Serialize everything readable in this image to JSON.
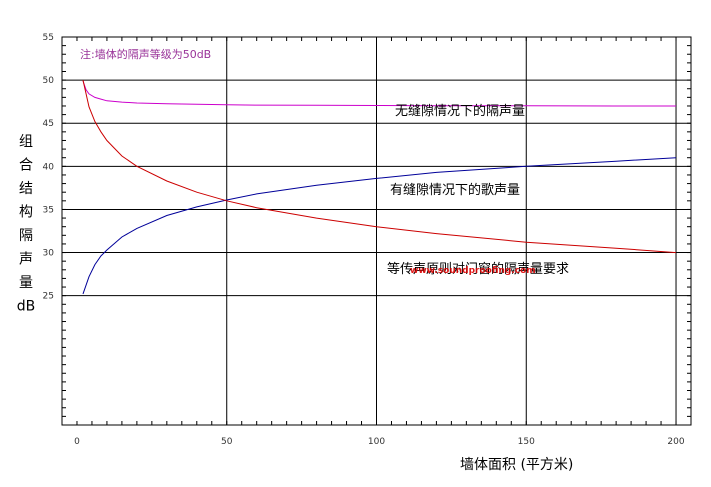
{
  "chart_data": {
    "type": "line",
    "xlabel": "墙体面积 (平方米)",
    "ylabel": "组合结构隔声量dB",
    "xlim": [
      -5,
      205
    ],
    "ylim": [
      10,
      55
    ],
    "xticks": [
      0,
      50,
      100,
      150,
      200
    ],
    "yticks": [
      25,
      30,
      35,
      40,
      45,
      50,
      55
    ],
    "grid": true,
    "note": "注:墙体的隔声等级为50dB",
    "annotations": [
      "无缝隙情况下的隔声量",
      "有缝隙情况下的歌声量",
      "等传声原则对门窗的隔声量要求"
    ],
    "watermark": "www.soundproofing.com",
    "series": [
      {
        "color": "#cc00cc",
        "x": [
          2,
          3,
          4,
          6,
          8,
          10,
          15,
          20,
          30,
          40,
          50,
          60,
          80,
          100,
          120,
          150,
          180,
          200
        ],
        "y": [
          49.9,
          48.9,
          48.4,
          48.0,
          47.8,
          47.6,
          47.45,
          47.35,
          47.25,
          47.2,
          47.15,
          47.1,
          47.08,
          47.05,
          47.03,
          47.02,
          47.0,
          47.0
        ]
      },
      {
        "color": "#000099",
        "x": [
          2,
          4,
          6,
          8,
          10,
          15,
          20,
          30,
          40,
          50,
          60,
          80,
          100,
          120,
          150,
          180,
          200
        ],
        "y": [
          25.2,
          27.2,
          28.6,
          29.6,
          30.3,
          31.8,
          32.8,
          34.3,
          35.3,
          36.1,
          36.8,
          37.8,
          38.6,
          39.3,
          40.0,
          40.6,
          41.0
        ]
      },
      {
        "color": "#cc0000",
        "x": [
          2,
          4,
          6,
          8,
          10,
          15,
          20,
          30,
          40,
          50,
          60,
          80,
          100,
          120,
          150,
          180,
          200
        ],
        "y": [
          50.0,
          46.9,
          45.2,
          44.0,
          43.0,
          41.2,
          40.0,
          38.3,
          37.0,
          36.0,
          35.2,
          34.0,
          33.0,
          32.2,
          31.2,
          30.5,
          30.0
        ]
      }
    ]
  }
}
